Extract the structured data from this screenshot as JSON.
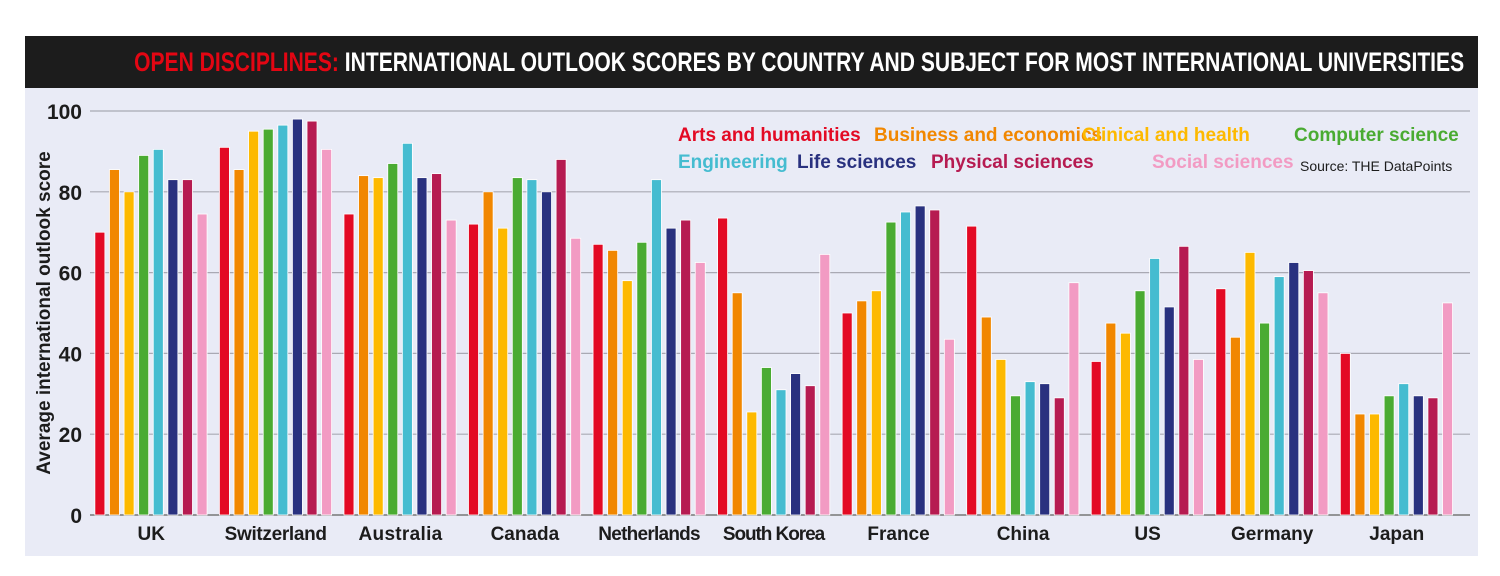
{
  "header": {
    "title_highlight": "OPEN DISCIPLINES:",
    "title_rest": " INTERNATIONAL OUTLOOK SCORES BY COUNTRY AND SUBJECT FOR MOST INTERNATIONAL UNIVERSITIES"
  },
  "chart_data": {
    "type": "bar",
    "title": "OPEN DISCIPLINES: INTERNATIONAL OUTLOOK SCORES BY COUNTRY AND SUBJECT FOR MOST INTERNATIONAL UNIVERSITIES",
    "xlabel": "",
    "ylabel": "Average international outlook score",
    "ylim": [
      0,
      100
    ],
    "yticks": [
      0,
      20,
      40,
      60,
      80,
      100
    ],
    "grid": true,
    "legend_position": "top-right",
    "source": "Source: THE DataPoints",
    "categories": [
      "UK",
      "Switzerland",
      "Australia",
      "Canada",
      "Netherlands",
      "South Korea",
      "France",
      "China",
      "US",
      "Germany",
      "Japan"
    ],
    "series": [
      {
        "name": "Arts and humanities",
        "color": "#e30a24",
        "values": [
          70,
          91,
          74.5,
          72,
          67,
          73.5,
          50,
          71.5,
          38,
          56,
          40
        ]
      },
      {
        "name": "Business and economics",
        "color": "#f18700",
        "values": [
          85.5,
          85.5,
          84,
          80,
          65.5,
          55,
          53,
          49,
          47.5,
          44,
          25
        ]
      },
      {
        "name": "Clinical and health",
        "color": "#fdb900",
        "values": [
          80,
          95,
          83.5,
          71,
          58,
          25.5,
          55.5,
          38.5,
          45,
          65,
          25
        ]
      },
      {
        "name": "Computer science",
        "color": "#4aab32",
        "values": [
          89,
          95.5,
          87,
          83.5,
          67.5,
          36.5,
          72.5,
          29.5,
          55.5,
          47.5,
          29.5
        ]
      },
      {
        "name": "Engineering",
        "color": "#45bcd0",
        "values": [
          90.5,
          96.5,
          92,
          83,
          83,
          31,
          75,
          33,
          63.5,
          59,
          32.5
        ]
      },
      {
        "name": "Life sciences",
        "color": "#29317f",
        "values": [
          83,
          98,
          83.5,
          80,
          71,
          35,
          76.5,
          32.5,
          51.5,
          62.5,
          29.5
        ]
      },
      {
        "name": "Physical sciences",
        "color": "#b61b51",
        "values": [
          83,
          97.5,
          84.5,
          88,
          73,
          32,
          75.5,
          29,
          66.5,
          60.5,
          29
        ]
      },
      {
        "name": "Social sciences",
        "color": "#f29bc3",
        "values": [
          74.5,
          90.5,
          73,
          68.5,
          62.5,
          64.5,
          43.5,
          57.5,
          38.5,
          55,
          52.5
        ]
      }
    ]
  }
}
